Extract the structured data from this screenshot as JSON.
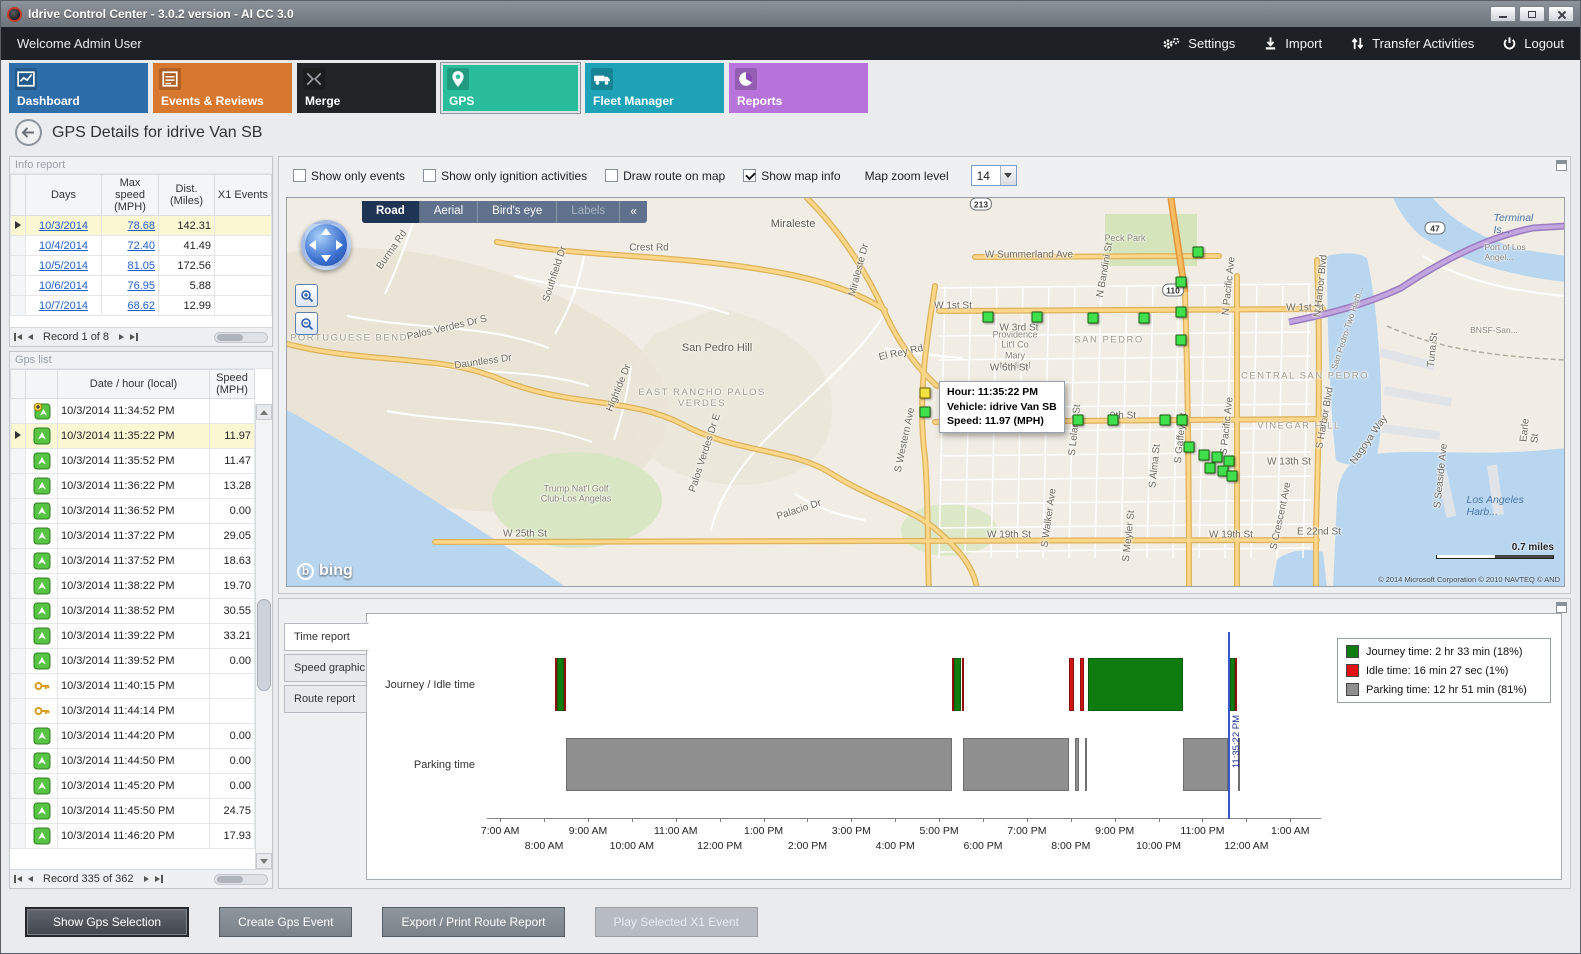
{
  "window": {
    "title": "Idrive Control Center - 3.0.2 version - AI CC 3.0"
  },
  "menubar": {
    "welcome": "Welcome Admin User",
    "items": [
      {
        "label": "Settings",
        "icon": "gear-icon"
      },
      {
        "label": "Import",
        "icon": "import-icon"
      },
      {
        "label": "Transfer Activities",
        "icon": "transfer-arrows-icon"
      },
      {
        "label": "Logout",
        "icon": "power-icon"
      }
    ]
  },
  "modules": [
    {
      "label": "Dashboard",
      "color": "#2d6da8",
      "icon": "dashboard-chart-icon",
      "selected": false
    },
    {
      "label": "Events & Reviews",
      "color": "#d8772e",
      "icon": "events-icon",
      "selected": false
    },
    {
      "label": "Merge",
      "color": "#212527",
      "icon": "merge-icon",
      "selected": false
    },
    {
      "label": "GPS",
      "color": "#29bd9c",
      "icon": "gps-pin-icon",
      "selected": true
    },
    {
      "label": "Fleet Manager",
      "color": "#1da2b8",
      "icon": "fleet-icon",
      "selected": false
    },
    {
      "label": "Reports",
      "color": "#b873da",
      "icon": "reports-icon",
      "selected": false
    }
  ],
  "page": {
    "title": "GPS Details for idrive Van SB"
  },
  "info_report": {
    "title": "Info report",
    "columns": [
      "Days",
      "Max speed (MPH)",
      "Dist. (Miles)",
      "X1 Events"
    ],
    "rows": [
      [
        "10/3/2014",
        "78.68",
        "142.31",
        ""
      ],
      [
        "10/4/2014",
        "72.40",
        "41.49",
        ""
      ],
      [
        "10/5/2014",
        "81.05",
        "172.56",
        ""
      ],
      [
        "10/6/2014",
        "76.95",
        "5.88",
        ""
      ],
      [
        "10/7/2014",
        "68.62",
        "12.99",
        ""
      ]
    ],
    "selected_row": 0,
    "pager": "Record 1 of 8"
  },
  "gps_list": {
    "title": "Gps list",
    "columns": [
      "Date / hour (local)",
      "Speed (MPH)"
    ],
    "selected_index": 1,
    "rows": [
      {
        "icon": "gps-add",
        "date": "10/3/2014 11:34:52 PM",
        "speed": ""
      },
      {
        "icon": "gps",
        "date": "10/3/2014 11:35:22 PM",
        "speed": "11.97"
      },
      {
        "icon": "gps",
        "date": "10/3/2014 11:35:52 PM",
        "speed": "11.47"
      },
      {
        "icon": "gps",
        "date": "10/3/2014 11:36:22 PM",
        "speed": "13.28"
      },
      {
        "icon": "gps",
        "date": "10/3/2014 11:36:52 PM",
        "speed": "0.00"
      },
      {
        "icon": "gps",
        "date": "10/3/2014 11:37:22 PM",
        "speed": "29.05"
      },
      {
        "icon": "gps",
        "date": "10/3/2014 11:37:52 PM",
        "speed": "18.63"
      },
      {
        "icon": "gps",
        "date": "10/3/2014 11:38:22 PM",
        "speed": "19.70"
      },
      {
        "icon": "gps",
        "date": "10/3/2014 11:38:52 PM",
        "speed": "30.55"
      },
      {
        "icon": "gps",
        "date": "10/3/2014 11:39:22 PM",
        "speed": "33.21"
      },
      {
        "icon": "gps",
        "date": "10/3/2014 11:39:52 PM",
        "speed": "0.00"
      },
      {
        "icon": "key",
        "date": "10/3/2014 11:40:15 PM",
        "speed": ""
      },
      {
        "icon": "key",
        "date": "10/3/2014 11:44:14 PM",
        "speed": ""
      },
      {
        "icon": "gps",
        "date": "10/3/2014 11:44:20 PM",
        "speed": "0.00"
      },
      {
        "icon": "gps",
        "date": "10/3/2014 11:44:50 PM",
        "speed": "0.00"
      },
      {
        "icon": "gps",
        "date": "10/3/2014 11:45:20 PM",
        "speed": "0.00"
      },
      {
        "icon": "gps",
        "date": "10/3/2014 11:45:50 PM",
        "speed": "24.75"
      },
      {
        "icon": "gps",
        "date": "10/3/2014 11:46:20 PM",
        "speed": "17.93"
      }
    ],
    "pager": "Record 335 of 362"
  },
  "map_toolbar": {
    "checkboxes": [
      {
        "label": "Show only events",
        "checked": false
      },
      {
        "label": "Show only ignition activities",
        "checked": false
      },
      {
        "label": "Draw route on map",
        "checked": false
      },
      {
        "label": "Show map info",
        "checked": true
      }
    ],
    "zoom_label": "Map zoom level",
    "zoom_value": "14"
  },
  "map": {
    "view_tabs": [
      "Road",
      "Aerial",
      "Bird's eye",
      "Labels"
    ],
    "active_tab": "Road",
    "collapse": "«",
    "tooltip": {
      "hour": "Hour: 11:35:22 PM",
      "vehicle": "Vehicle: idrive Van SB",
      "speed": "Speed: 11.97 (MPH)"
    },
    "logo_badge": "b",
    "logo": "bing",
    "scale": "0.7 miles",
    "copyright": "© 2014 Microsoft Corporation   © 2010 NAVTEQ   © AND",
    "shields": [
      [
        "213",
        694,
        6
      ],
      [
        "110",
        886,
        92
      ],
      [
        "47",
        1148,
        30
      ]
    ],
    "labels": [
      [
        "Miraleste",
        506,
        26,
        "city",
        0
      ],
      [
        "Peck Park",
        838,
        40,
        "poi",
        0
      ],
      [
        "W Summerland Ave",
        742,
        57,
        "road",
        0
      ],
      [
        "Crest Rd",
        362,
        50,
        "road",
        0
      ],
      [
        "Burma Rd",
        105,
        52,
        "road",
        -55
      ],
      [
        "Southfield Dr",
        268,
        76,
        "road",
        -72
      ],
      [
        "Miraleste Dr",
        572,
        72,
        "road",
        -75
      ],
      [
        "N Bandini St",
        818,
        72,
        "road",
        -80
      ],
      [
        "W 1st St",
        666,
        108,
        "road",
        0
      ],
      [
        "W 1st St",
        1018,
        110,
        "road",
        0
      ],
      [
        "PORTUGUESE BEND",
        62,
        140,
        "area",
        0
      ],
      [
        "SAN PEDRO",
        822,
        142,
        "area",
        0
      ],
      [
        "CENTRAL SAN PEDRO",
        1018,
        178,
        "area",
        0
      ],
      [
        "W 3rd St",
        732,
        130,
        "road",
        0
      ],
      [
        "Providence\nLit'l Co\nMary\nMedical",
        728,
        152,
        "poi",
        0
      ],
      [
        "W 6th St",
        722,
        170,
        "road",
        0
      ],
      [
        "El Rey Rd",
        614,
        155,
        "road",
        -12
      ],
      [
        "San Pedro Hill",
        430,
        150,
        "city",
        0
      ],
      [
        "Palos Verdes Dr S",
        160,
        130,
        "road",
        -13
      ],
      [
        "EAST RANCHO PALOS\nVERDES",
        415,
        200,
        "area",
        0
      ],
      [
        "Dauntless Dr",
        196,
        164,
        "road",
        -8
      ],
      [
        "Hightide Dr",
        332,
        190,
        "road",
        -68
      ],
      [
        "9th St",
        836,
        218,
        "road",
        0
      ],
      [
        "VINEGAR HILL",
        1012,
        228,
        "area",
        0
      ],
      [
        "W 13th St",
        1002,
        264,
        "road",
        0
      ],
      [
        "Trump Nat'l Golf\nClub-Los Angelas",
        289,
        296,
        "poi",
        0
      ],
      [
        "Palos Verdes Dr E",
        418,
        255,
        "road",
        -72
      ],
      [
        "W 25th St",
        238,
        336,
        "road",
        0
      ],
      [
        "Palacio Dr",
        512,
        312,
        "road",
        -18
      ],
      [
        "W 19th St",
        722,
        337,
        "road",
        0
      ],
      [
        "W 19th St",
        944,
        337,
        "road",
        0
      ],
      [
        "S Western Ave",
        618,
        242,
        "road",
        -78
      ],
      [
        "S Walker Ave",
        762,
        320,
        "road",
        -82
      ],
      [
        "S Leland St",
        788,
        232,
        "road",
        -84
      ],
      [
        "S Alma St",
        868,
        268,
        "road",
        -84
      ],
      [
        "S Gaffey St",
        894,
        240,
        "road",
        -84
      ],
      [
        "S Meyler St",
        842,
        338,
        "road",
        -84
      ],
      [
        "S Pacific Ave",
        940,
        228,
        "road",
        -84
      ],
      [
        "N Pacific Ave",
        942,
        88,
        "road",
        -84
      ],
      [
        "N Harbor Blvd",
        1034,
        88,
        "road",
        -84
      ],
      [
        "S Harbor Blvd",
        1038,
        220,
        "road",
        -80
      ],
      [
        "S Crescent Ave",
        994,
        318,
        "road",
        -78
      ],
      [
        "E 22nd St",
        1032,
        334,
        "road",
        0
      ],
      [
        "Los Angeles Harb...",
        1212,
        308,
        "water",
        0
      ],
      [
        "S Seaside Ave",
        1154,
        278,
        "road",
        -84
      ],
      [
        "Nagoya Way",
        1082,
        242,
        "road",
        -55
      ],
      [
        "San Pedro-Two Harb...",
        1060,
        130,
        "sm",
        -72
      ],
      [
        "BNSF-San...",
        1207,
        132,
        "sm",
        0
      ],
      [
        "Tuna St",
        1146,
        152,
        "road",
        -84
      ],
      [
        "Earle St",
        1244,
        228,
        "road",
        -84
      ],
      [
        "Terminal Is...",
        1230,
        26,
        "water",
        0
      ],
      [
        "Port of Los Angel...",
        1224,
        54,
        "sm",
        0
      ]
    ],
    "markers": [
      [
        911,
        54,
        0
      ],
      [
        894,
        84,
        0
      ],
      [
        894,
        114,
        0
      ],
      [
        701,
        119,
        0
      ],
      [
        750,
        119,
        0
      ],
      [
        806,
        120,
        0
      ],
      [
        857,
        120,
        0
      ],
      [
        894,
        142,
        0
      ],
      [
        638,
        195,
        1
      ],
      [
        638,
        214,
        0
      ],
      [
        764,
        221,
        0
      ],
      [
        791,
        222,
        0
      ],
      [
        826,
        222,
        0
      ],
      [
        878,
        222,
        0
      ],
      [
        895,
        222,
        0
      ],
      [
        902,
        249,
        0
      ],
      [
        917,
        257,
        0
      ],
      [
        930,
        259,
        0
      ],
      [
        942,
        263,
        0
      ],
      [
        923,
        270,
        0
      ],
      [
        936,
        273,
        0
      ],
      [
        945,
        278,
        0
      ]
    ]
  },
  "chart_tabs": [
    {
      "label": "Time report",
      "active": true
    },
    {
      "label": "Speed graphic",
      "active": false
    },
    {
      "label": "Route report",
      "active": false
    }
  ],
  "chart_data": {
    "type": "gantt-timeline",
    "title": "Time report",
    "rows": [
      "Journey / Idle time",
      "Parking time"
    ],
    "x_range_hours": [
      6.7,
      25.7
    ],
    "ticks": [
      [
        7,
        "7:00 AM",
        "t"
      ],
      [
        8,
        "8:00 AM",
        "b"
      ],
      [
        9,
        "9:00 AM",
        "t"
      ],
      [
        10,
        "10:00 AM",
        "b"
      ],
      [
        11,
        "11:00 AM",
        "t"
      ],
      [
        12,
        "12:00 PM",
        "b"
      ],
      [
        13,
        "1:00 PM",
        "t"
      ],
      [
        14,
        "2:00 PM",
        "b"
      ],
      [
        15,
        "3:00 PM",
        "t"
      ],
      [
        16,
        "4:00 PM",
        "b"
      ],
      [
        17,
        "5:00 PM",
        "t"
      ],
      [
        18,
        "6:00 PM",
        "b"
      ],
      [
        19,
        "7:00 PM",
        "t"
      ],
      [
        20,
        "8:00 PM",
        "b"
      ],
      [
        21,
        "9:00 PM",
        "t"
      ],
      [
        22,
        "10:00 PM",
        "b"
      ],
      [
        23,
        "11:00 PM",
        "t"
      ],
      [
        24,
        "12:00 AM",
        "b"
      ],
      [
        25,
        "1:00 AM",
        "t"
      ]
    ],
    "journey_segments": [
      [
        8.25,
        8.29,
        "idle"
      ],
      [
        8.29,
        8.46,
        "journey"
      ],
      [
        8.46,
        8.5,
        "idle"
      ],
      [
        17.3,
        17.34,
        "idle"
      ],
      [
        17.34,
        17.51,
        "journey"
      ],
      [
        17.51,
        17.55,
        "idle"
      ],
      [
        19.95,
        20.08,
        "idle"
      ],
      [
        20.2,
        20.3,
        "idle"
      ],
      [
        20.4,
        22.55,
        "journey"
      ],
      [
        23.58,
        23.62,
        "idle"
      ],
      [
        23.62,
        23.73,
        "journey"
      ],
      [
        23.73,
        23.78,
        "idle"
      ]
    ],
    "parking_segments": [
      [
        8.5,
        17.3
      ],
      [
        17.55,
        19.95
      ],
      [
        20.1,
        20.18
      ],
      [
        20.32,
        20.38
      ],
      [
        22.55,
        23.58
      ],
      [
        23.8,
        23.85
      ]
    ],
    "cursor": {
      "hour": 23.59,
      "label": "11:35:22 PM"
    },
    "legend": [
      {
        "label": "Journey time: 2 hr 33 min (18%)",
        "color": "#0e7c0e"
      },
      {
        "label": "Idle time: 16 min 27 sec (1%)",
        "color": "#e01212"
      },
      {
        "label": "Parking time: 12 hr 51 min (81%)",
        "color": "#8f8f8f"
      }
    ]
  },
  "footer_buttons": [
    {
      "label": "Show Gps Selection",
      "style": "dark"
    },
    {
      "label": "Create Gps Event",
      "style": "gray"
    },
    {
      "label": "Export / Print Route Report",
      "style": "gray"
    },
    {
      "label": "Play Selected X1 Event",
      "style": "disabled"
    }
  ]
}
